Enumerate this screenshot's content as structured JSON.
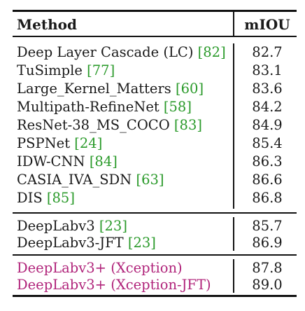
{
  "header": {
    "method": "Method",
    "metric": "mIOU"
  },
  "groups": [
    {
      "rows": [
        {
          "method": "Deep Layer Cascade (LC)",
          "cite": "82",
          "value": "82.7"
        },
        {
          "method": "TuSimple",
          "cite": "77",
          "value": "83.1"
        },
        {
          "method": "Large_Kernel_Matters",
          "cite": "60",
          "value": "83.6"
        },
        {
          "method": "Multipath-RefineNet",
          "cite": "58",
          "value": "84.2"
        },
        {
          "method": "ResNet-38_MS_COCO",
          "cite": "83",
          "value": "84.9"
        },
        {
          "method": "PSPNet",
          "cite": "24",
          "value": "85.4"
        },
        {
          "method": "IDW-CNN",
          "cite": "84",
          "value": "86.3"
        },
        {
          "method": "CASIA_IVA_SDN",
          "cite": "63",
          "value": "86.6"
        },
        {
          "method": "DIS",
          "cite": "85",
          "value": "86.8"
        }
      ]
    },
    {
      "rows": [
        {
          "method": "DeepLabv3",
          "cite": "23",
          "value": "85.7"
        },
        {
          "method": "DeepLabv3-JFT",
          "cite": "23",
          "value": "86.9"
        }
      ]
    },
    {
      "highlight_color": "#b0237a",
      "rows": [
        {
          "method": "DeepLabv3+ (Xception)",
          "value": "87.8"
        },
        {
          "method": "DeepLabv3+ (Xception-JFT)",
          "value": "89.0"
        }
      ]
    }
  ],
  "colors": {
    "citation": "#2a9a2a",
    "highlight": "#b0237a",
    "rule": "#111111"
  }
}
